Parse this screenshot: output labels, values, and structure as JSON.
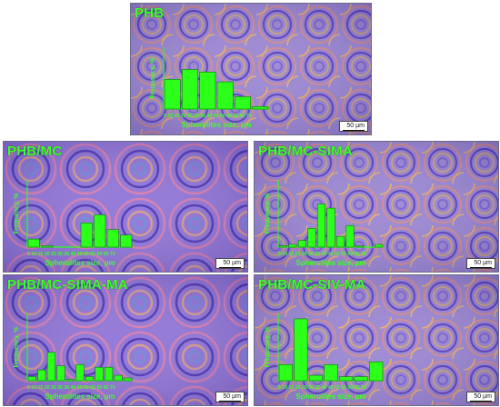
{
  "colors": {
    "bars": "#2bff1a",
    "label": "#3dff2a",
    "bg1": "#a98fd6",
    "bg2": "#6e4cc8",
    "bg3": "#c98f9a"
  },
  "scale_bar_text": "50 µm",
  "panels": [
    {
      "id": "phb",
      "label": "PHB",
      "ylabel": "Frequency, %",
      "xlabel": "Spherulites size, µm",
      "tick_text": "5 10 15 20 25 30 35 40 45 50 55 60 65 70",
      "freqs": [
        24,
        32,
        30,
        22,
        10,
        2
      ]
    },
    {
      "id": "phb-mc",
      "label": "PHB/MC",
      "ylabel": "Frequency, %",
      "xlabel": "Spherulites size, µm",
      "tick_text": "5 10 15 20 25 30 35 40 45 50 55 60 65 70",
      "freqs": [
        6,
        1,
        0,
        0,
        18,
        24,
        13,
        9
      ]
    },
    {
      "id": "phb-mc-sima",
      "label": "PHB/MC-SIMA",
      "ylabel": "Frequency, %",
      "xlabel": "Spherulites size, µm",
      "tick_text": "5 10 15 20 25 30 35 40 45 50 55 60 65 70",
      "freqs": [
        1,
        2,
        5,
        14,
        32,
        29,
        8,
        16,
        1,
        0,
        2
      ]
    },
    {
      "id": "phb-mc-sima-ma",
      "label": "PHB/MC-SIMA-MA",
      "ylabel": "Frequency, %",
      "xlabel": "Spherulites size, µm",
      "tick_text": "5 10 15 20 25 30 35 40 45 50 55 60 65 70",
      "freqs": [
        3,
        8,
        21,
        11,
        1,
        12,
        3,
        10,
        10,
        4,
        2
      ]
    },
    {
      "id": "phb-mc-siv-ma",
      "label": "PHB/MC-SIV-MA",
      "ylabel": "Frequency, %",
      "xlabel": "Spherulites size, µm",
      "tick_text": "5 10 15 20 25 30 35 40 45 50 55 60 65 70",
      "freqs": [
        12,
        46,
        4,
        12,
        3,
        3,
        14
      ]
    }
  ]
}
